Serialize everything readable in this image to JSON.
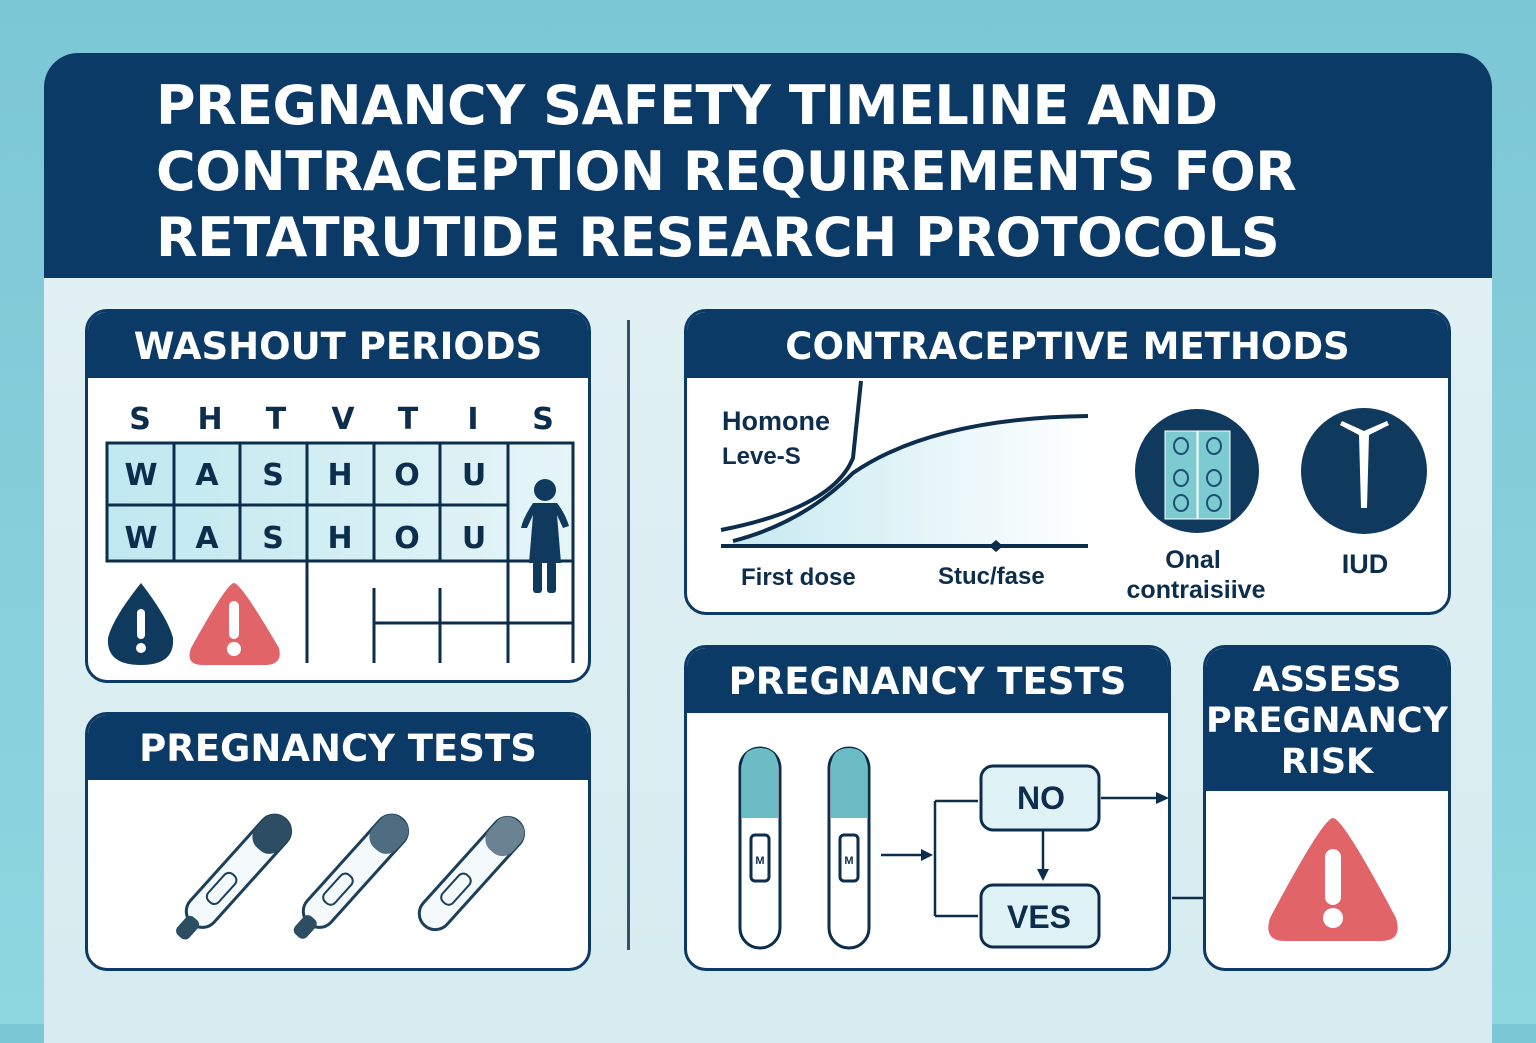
{
  "title": [
    "PREGNANCY SAFETY TIMELINE AND",
    "CONTRACEPTION REQUIREMENTS FOR",
    "RETATRUTIDE RESEARCH PROTOCOLS"
  ],
  "washout": {
    "heading": "WASHOUT PERIODS",
    "day_letters": [
      "S",
      "H",
      "T",
      "V",
      "T",
      "I",
      "S"
    ],
    "row1": [
      "W",
      "A",
      "S",
      "H",
      "O",
      "U"
    ],
    "row2": [
      "W",
      "A",
      "S",
      "H",
      "O",
      "U"
    ],
    "icons": [
      "person-silhouette-icon",
      "warning-drop-icon",
      "warning-triangle-icon"
    ]
  },
  "tests_left": {
    "heading": "PREGNANCY TESTS",
    "icons": [
      "pregnancy-test-icon",
      "pregnancy-test-icon",
      "pregnancy-test-icon"
    ]
  },
  "contraceptive": {
    "heading": "CONTRACEPTIVE METHODS",
    "graph_label_1": "Homone",
    "graph_label_2": "Leve-S",
    "x_label_start": "First dose",
    "x_label_end": "Stuc/fase",
    "method_1": [
      "Onal",
      "contraisiive"
    ],
    "method_2": "IUD"
  },
  "tests_right": {
    "heading": "PREGNANCY TESTS",
    "result_no": "NO",
    "result_yes": "VES",
    "test_marks": [
      "M",
      "M"
    ]
  },
  "assess": {
    "heading": [
      "ASSESS",
      "PREGNANCY",
      "RISK"
    ]
  },
  "colors": {
    "navy": "#0c3a66",
    "alert_red": "#e06468",
    "teal": "#6bbcc4"
  }
}
